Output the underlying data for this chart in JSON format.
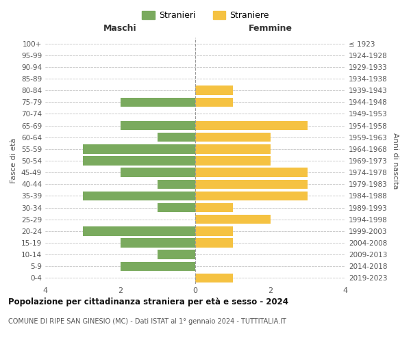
{
  "age_groups": [
    "100+",
    "95-99",
    "90-94",
    "85-89",
    "80-84",
    "75-79",
    "70-74",
    "65-69",
    "60-64",
    "55-59",
    "50-54",
    "45-49",
    "40-44",
    "35-39",
    "30-34",
    "25-29",
    "20-24",
    "15-19",
    "10-14",
    "5-9",
    "0-4"
  ],
  "birth_years": [
    "≤ 1923",
    "1924-1928",
    "1929-1933",
    "1934-1938",
    "1939-1943",
    "1944-1948",
    "1949-1953",
    "1954-1958",
    "1959-1963",
    "1964-1968",
    "1969-1973",
    "1974-1978",
    "1979-1983",
    "1984-1988",
    "1989-1993",
    "1994-1998",
    "1999-2003",
    "2004-2008",
    "2009-2013",
    "2014-2018",
    "2019-2023"
  ],
  "maschi": [
    0,
    0,
    0,
    0,
    0,
    2,
    0,
    2,
    1,
    3,
    3,
    2,
    1,
    3,
    1,
    0,
    3,
    2,
    1,
    2,
    0
  ],
  "femmine": [
    0,
    0,
    0,
    0,
    1,
    1,
    0,
    3,
    2,
    2,
    2,
    3,
    3,
    3,
    1,
    2,
    1,
    1,
    0,
    0,
    1
  ],
  "color_maschi": "#7aaa5e",
  "color_femmine": "#f5c242",
  "color_grid": "#cccccc",
  "color_center_line": "#999999",
  "title1": "Popolazione per cittadinanza straniera per età e sesso - 2024",
  "title2": "COMUNE DI RIPE SAN GINESIO (MC) - Dati ISTAT al 1° gennaio 2024 - TUTTITALIA.IT",
  "xlabel_left": "Maschi",
  "xlabel_right": "Femmine",
  "ylabel_left": "Fasce di età",
  "ylabel_right": "Anni di nascita",
  "legend_maschi": "Stranieri",
  "legend_femmine": "Straniere",
  "xlim": 4,
  "background_color": "#ffffff"
}
